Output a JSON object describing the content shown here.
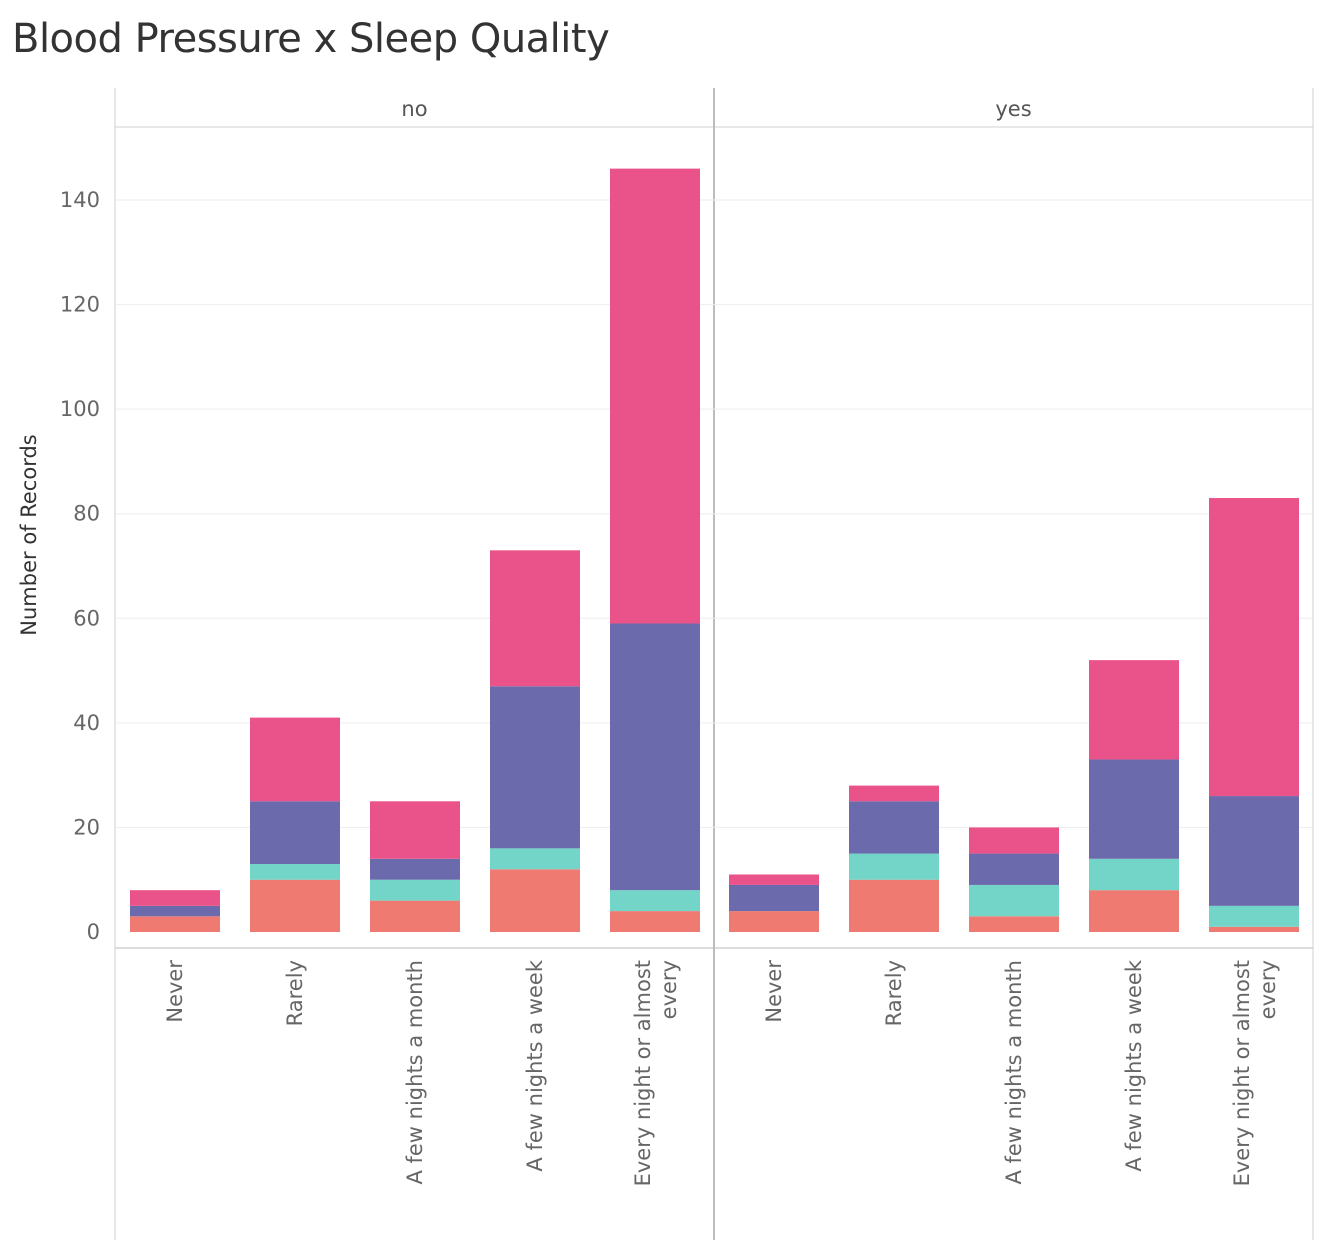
{
  "chart_data": {
    "type": "bar",
    "stacked": true,
    "title": "Blood Pressure x Sleep Quality",
    "ylabel": "Number of Records",
    "xlabel": "",
    "ylim": [
      0,
      148
    ],
    "yticks": [
      0,
      20,
      40,
      60,
      80,
      100,
      120,
      140
    ],
    "grid": true,
    "legend": "none",
    "colors": [
      "#ef7a72",
      "#73d4c8",
      "#6a6aad",
      "#ea5389"
    ],
    "categories": [
      "Never",
      "Rarely",
      "A few nights a month",
      "A few nights a week",
      "Every night or almost every"
    ],
    "panels": [
      {
        "label": "no",
        "series": [
          {
            "values": [
              3,
              10,
              6,
              12,
              4
            ]
          },
          {
            "values": [
              0,
              3,
              4,
              4,
              4
            ]
          },
          {
            "values": [
              2,
              12,
              4,
              31,
              51
            ]
          },
          {
            "values": [
              3,
              16,
              11,
              26,
              87
            ]
          }
        ]
      },
      {
        "label": "yes",
        "series": [
          {
            "values": [
              4,
              10,
              3,
              8,
              1
            ]
          },
          {
            "values": [
              0,
              5,
              6,
              6,
              4
            ]
          },
          {
            "values": [
              5,
              10,
              6,
              19,
              21
            ]
          },
          {
            "values": [
              2,
              3,
              5,
              19,
              57
            ]
          }
        ]
      }
    ]
  }
}
